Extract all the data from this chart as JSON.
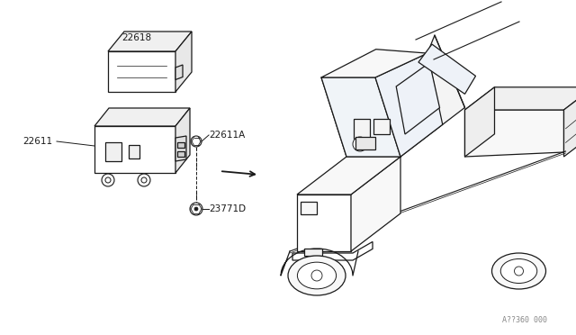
{
  "bg_color": "#ffffff",
  "line_color": "#1a1a1a",
  "fig_width": 6.4,
  "fig_height": 3.72,
  "dpi": 100,
  "watermark": "A??360 000"
}
